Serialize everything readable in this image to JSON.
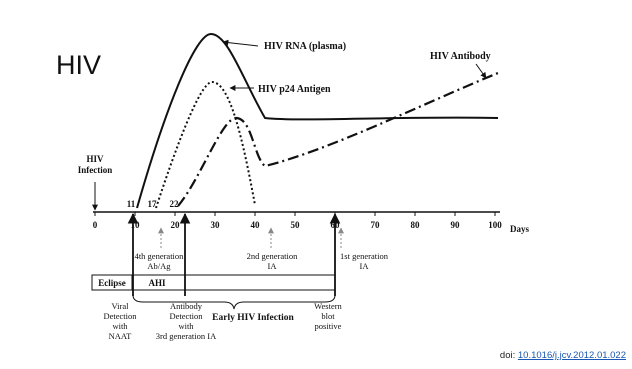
{
  "slide": {
    "title": "HIV",
    "doi_prefix": "doi:",
    "doi_link": "10.1016/j.jcv.2012.01.022"
  },
  "curves": {
    "rna": "HIV RNA (plasma)",
    "p24": "HIV p24 Antigen",
    "antibody": "HIV Antibody"
  },
  "infection_label": [
    "HIV",
    "Infection"
  ],
  "axis": {
    "unit": "Days",
    "ticks": [
      "0",
      "10",
      "20",
      "30",
      "40",
      "50",
      "60",
      "70",
      "80",
      "90",
      "100"
    ],
    "markers": [
      "11",
      "17",
      "22"
    ]
  },
  "tests": {
    "fourth_gen": [
      "4th generation",
      "Ab/Ag"
    ],
    "second_gen": [
      "2nd generation",
      "IA"
    ],
    "first_gen": [
      "1st generation",
      "IA"
    ]
  },
  "phases": {
    "eclipse": "Eclipse",
    "ahi": "AHI",
    "early": "Early HIV Infection"
  },
  "detections": {
    "viral": [
      "Viral",
      "Detection",
      "with",
      "NAAT"
    ],
    "antibody": [
      "Antibody",
      "Detection",
      "with",
      "3rd generation IA"
    ],
    "western": [
      "Western",
      "blot",
      "positive"
    ]
  },
  "colors": {
    "curve": "#111111",
    "dashed_arrow": "#888888",
    "link": "#1a57b3"
  }
}
